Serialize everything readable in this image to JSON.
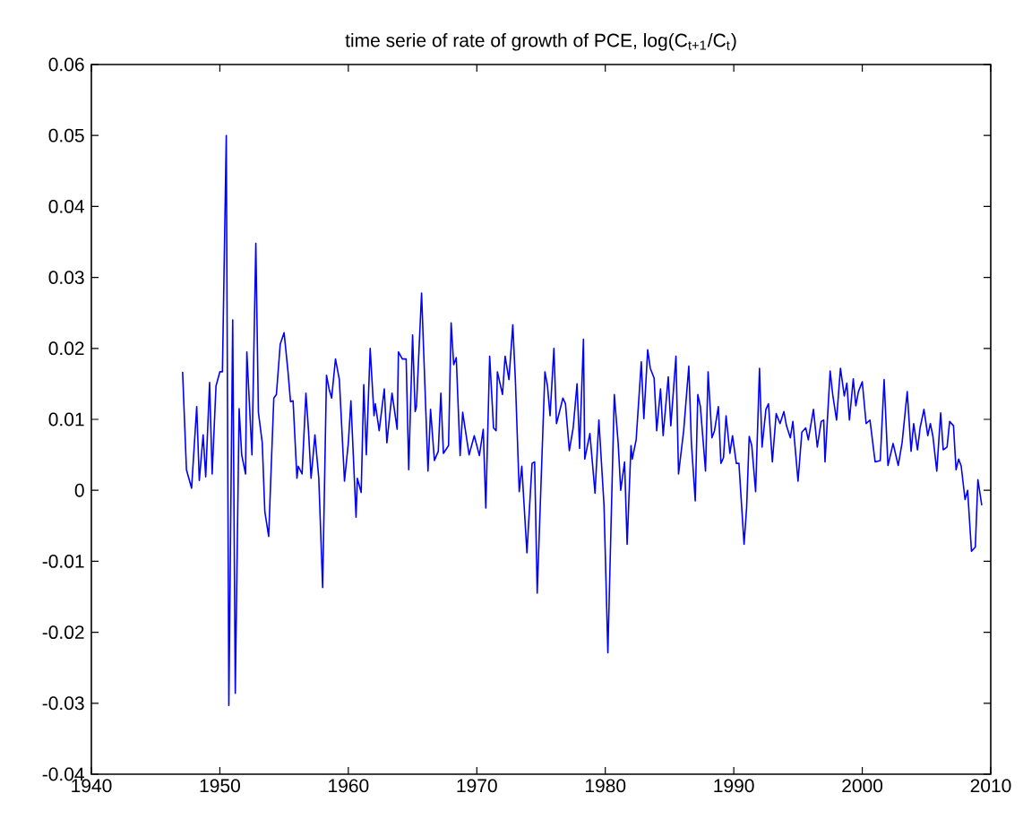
{
  "chart_data": {
    "type": "line",
    "title": "time serie of rate of growth of PCE, log(C$_{t+1}$/C$_{t}$)",
    "xlim": [
      1940,
      2010
    ],
    "ylim": [
      -0.04,
      0.06
    ],
    "xticks": [
      1940,
      1950,
      1960,
      1970,
      1980,
      1990,
      2000,
      2010
    ],
    "yticks": [
      -0.04,
      -0.03,
      -0.02,
      -0.01,
      0,
      0.01,
      0.02,
      0.03,
      0.04,
      0.05,
      0.06
    ],
    "grid": false,
    "line_style": "solid",
    "series": [
      {
        "color": "#0000ff",
        "x": [
          1947.1,
          1947.4,
          1947.8,
          1948.2,
          1948.4,
          1948.7,
          1948.9,
          1949.2,
          1949.4,
          1949.7,
          1950.0,
          1950.2,
          1950.5,
          1950.7,
          1951.0,
          1951.2,
          1951.5,
          1951.7,
          1952.0,
          1952.1,
          1952.5,
          1952.8,
          1953.0,
          1953.3,
          1953.5,
          1953.8,
          1954.0,
          1954.2,
          1954.4,
          1954.7,
          1955.0,
          1955.3,
          1955.5,
          1955.7,
          1956.0,
          1956.1,
          1956.4,
          1956.7,
          1956.9,
          1957.1,
          1957.4,
          1957.7,
          1958.0,
          1958.3,
          1958.5,
          1958.7,
          1959.0,
          1959.3,
          1959.7,
          1960.0,
          1960.2,
          1960.6,
          1960.7,
          1961.0,
          1961.2,
          1961.4,
          1961.7,
          1962.0,
          1962.1,
          1962.4,
          1962.8,
          1963.0,
          1963.4,
          1963.8,
          1963.9,
          1964.2,
          1964.5,
          1964.7,
          1965.0,
          1965.2,
          1965.3,
          1965.7,
          1966.2,
          1966.4,
          1966.7,
          1967.0,
          1967.2,
          1967.4,
          1967.8,
          1968.0,
          1968.2,
          1968.4,
          1968.7,
          1968.9,
          1969.4,
          1969.8,
          1970.2,
          1970.5,
          1970.7,
          1971.0,
          1971.3,
          1971.5,
          1971.6,
          1972.0,
          1972.2,
          1972.5,
          1972.8,
          1973.0,
          1973.3,
          1973.5,
          1973.9,
          1974.3,
          1974.5,
          1974.7,
          1975.3,
          1975.5,
          1975.7,
          1976.0,
          1976.2,
          1976.3,
          1976.7,
          1976.9,
          1977.2,
          1977.5,
          1977.8,
          1978.0,
          1978.3,
          1978.4,
          1978.8,
          1979.2,
          1979.5,
          1979.9,
          1980.2,
          1980.7,
          1981.0,
          1981.2,
          1981.5,
          1981.7,
          1982.0,
          1982.1,
          1982.4,
          1982.8,
          1983.0,
          1983.3,
          1983.5,
          1983.8,
          1984.0,
          1984.3,
          1984.5,
          1984.9,
          1985.1,
          1985.5,
          1985.7,
          1986.1,
          1986.5,
          1986.7,
          1987.0,
          1987.2,
          1987.4,
          1987.8,
          1988.0,
          1988.3,
          1988.5,
          1988.8,
          1989.0,
          1989.2,
          1989.4,
          1989.7,
          1989.9,
          1990.2,
          1990.4,
          1990.8,
          1991.0,
          1991.2,
          1991.4,
          1991.7,
          1992.0,
          1992.2,
          1992.5,
          1992.7,
          1993.0,
          1993.3,
          1993.6,
          1993.9,
          1994.1,
          1994.4,
          1994.6,
          1995.0,
          1995.3,
          1995.6,
          1995.8,
          1996.2,
          1996.5,
          1996.8,
          1997.0,
          1997.1,
          1997.5,
          1997.7,
          1998.0,
          1998.3,
          1998.6,
          1998.8,
          1999.0,
          1999.3,
          1999.5,
          1999.7,
          2000.0,
          2000.3,
          2000.6,
          2001.0,
          2001.4,
          2001.7,
          2002.0,
          2002.4,
          2002.8,
          2003.1,
          2003.5,
          2003.8,
          2004.0,
          2004.3,
          2004.5,
          2004.8,
          2005.1,
          2005.3,
          2005.5,
          2005.8,
          2006.1,
          2006.3,
          2006.6,
          2006.8,
          2007.1,
          2007.3,
          2007.5,
          2007.7,
          2008.0,
          2008.2,
          2008.5,
          2008.8,
          2009.0,
          2009.3
        ],
        "values": [
          0.0167,
          0.0029,
          0.0003,
          0.0118,
          0.0014,
          0.0078,
          0.0019,
          0.0152,
          0.0023,
          0.0147,
          0.0167,
          0.0167,
          0.05,
          -0.0303,
          0.024,
          -0.0286,
          0.0115,
          0.005,
          0.0023,
          0.0195,
          0.005,
          0.0348,
          0.011,
          0.0067,
          -0.003,
          -0.0065,
          0.0034,
          0.013,
          0.0135,
          0.0206,
          0.0222,
          0.0168,
          0.0125,
          0.0126,
          0.0017,
          0.0034,
          0.0023,
          0.0137,
          0.0084,
          0.0017,
          0.0078,
          0.0017,
          -0.0137,
          0.0162,
          0.0143,
          0.013,
          0.0185,
          0.0156,
          0.0013,
          0.0067,
          0.0126,
          -0.0038,
          0.0017,
          -0.0003,
          0.0149,
          0.005,
          0.02,
          0.0105,
          0.0122,
          0.0084,
          0.0143,
          0.0067,
          0.0137,
          0.0086,
          0.0195,
          0.0185,
          0.0185,
          0.0029,
          0.0219,
          0.0111,
          0.0118,
          0.0278,
          0.0027,
          0.0114,
          0.0042,
          0.0055,
          0.0137,
          0.0052,
          0.0063,
          0.0236,
          0.0177,
          0.0187,
          0.0049,
          0.011,
          0.005,
          0.0077,
          0.0049,
          0.0086,
          -0.0025,
          0.0189,
          0.0088,
          0.0084,
          0.0167,
          0.0135,
          0.0189,
          0.0156,
          0.0233,
          0.0156,
          -0.0002,
          0.0034,
          -0.0088,
          0.0038,
          0.004,
          -0.0145,
          0.0167,
          0.0147,
          0.0105,
          0.02,
          0.0094,
          0.0101,
          0.013,
          0.0122,
          0.0056,
          0.0088,
          0.015,
          0.0059,
          0.0213,
          0.0044,
          0.008,
          -0.0004,
          0.0099,
          -0.0021,
          -0.0229,
          0.0135,
          0.0067,
          0.0,
          0.004,
          -0.0076,
          0.0063,
          0.0044,
          0.0071,
          0.0181,
          0.0101,
          0.0198,
          0.0172,
          0.0158,
          0.0084,
          0.0143,
          0.0077,
          0.016,
          0.0091,
          0.0189,
          0.0023,
          0.0084,
          0.0175,
          0.0067,
          -0.0015,
          0.0135,
          0.0118,
          0.0027,
          0.0167,
          0.0074,
          0.0084,
          0.0118,
          0.0038,
          0.0046,
          0.0105,
          0.0052,
          0.0077,
          0.0038,
          0.0038,
          -0.0076,
          -0.0024,
          0.0076,
          0.0063,
          -0.0002,
          0.0172,
          0.0061,
          0.0114,
          0.0122,
          0.004,
          0.0108,
          0.0094,
          0.0111,
          0.0091,
          0.0074,
          0.0097,
          0.0013,
          0.0082,
          0.0088,
          0.0071,
          0.0114,
          0.0061,
          0.0097,
          0.0099,
          0.004,
          0.0168,
          0.0135,
          0.0099,
          0.0172,
          0.0133,
          0.0151,
          0.0099,
          0.0157,
          0.0119,
          0.0139,
          0.0153,
          0.0094,
          0.0099,
          0.004,
          0.0042,
          0.0156,
          0.0035,
          0.0066,
          0.0035,
          0.0067,
          0.0139,
          0.0055,
          0.0094,
          0.0057,
          0.0088,
          0.0114,
          0.0077,
          0.0094,
          0.0076,
          0.0027,
          0.0109,
          0.0057,
          0.0061,
          0.0097,
          0.0091,
          0.0029,
          0.0044,
          0.0034,
          -0.0013,
          0.0,
          -0.0086,
          -0.008,
          0.0015,
          -0.0021
        ]
      }
    ]
  }
}
